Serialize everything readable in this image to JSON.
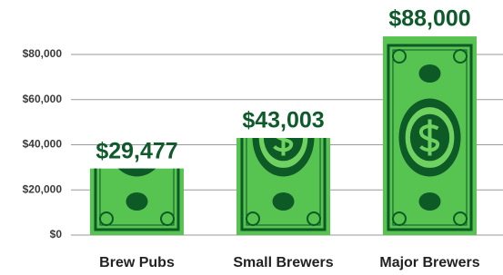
{
  "chart_data": {
    "type": "bar",
    "categories": [
      "Brew Pubs",
      "Small Brewers",
      "Major Brewers"
    ],
    "values": [
      29477,
      43003,
      88000
    ],
    "value_labels": [
      "$29,477",
      "$43,003",
      "$88,000"
    ],
    "color": "#57c350",
    "ylim": [
      0,
      80000
    ],
    "yticks": [
      {
        "value": 0,
        "label": "$0"
      },
      {
        "value": 20000,
        "label": "$20,000"
      },
      {
        "value": 40000,
        "label": "$40,000"
      },
      {
        "value": 60000,
        "label": "$60,000"
      },
      {
        "value": 80000,
        "label": "$80,000"
      }
    ],
    "grid": true
  }
}
